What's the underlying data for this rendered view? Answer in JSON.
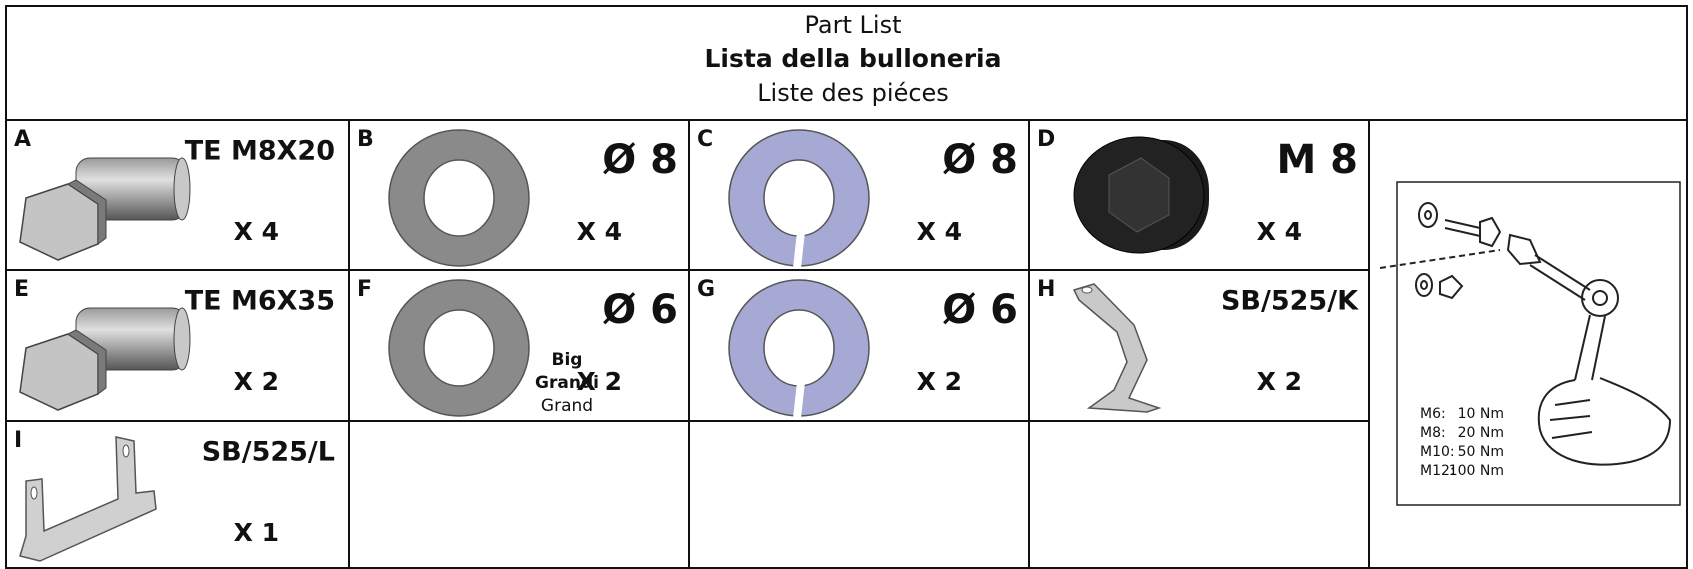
{
  "header": {
    "title": "Part List",
    "subtitle": "Lista della bulloneria",
    "subtitle2": "Liste des piéces"
  },
  "parts": [
    {
      "letter": "A",
      "code": "TE M8X20",
      "quantity": "X 4"
    },
    {
      "letter": "B",
      "code": "Ø 8",
      "quantity": "X 4"
    },
    {
      "letter": "C",
      "code": "Ø 8",
      "quantity": "X 4"
    },
    {
      "letter": "D",
      "code": "M 8",
      "quantity": "X 4"
    },
    {
      "letter": "E",
      "code": "TE M6X35",
      "quantity": "X 2"
    },
    {
      "letter": "F",
      "code": "Ø 6",
      "quantity": "X 2",
      "size_labels": [
        "Big",
        "Grandi",
        "Grand"
      ]
    },
    {
      "letter": "G",
      "code": "Ø 6",
      "quantity": "X 2"
    },
    {
      "letter": "H",
      "code": "SB/525/K",
      "quantity": "X 2"
    },
    {
      "letter": "I",
      "code": "SB/525/L",
      "quantity": "X 1"
    }
  ],
  "torque_table": [
    {
      "size": "M6:",
      "torque": "10 Nm"
    },
    {
      "size": "M8:",
      "torque": "20 Nm"
    },
    {
      "size": "M10:",
      "torque": "50 Nm"
    },
    {
      "size": "M12:",
      "torque": "100 Nm"
    }
  ]
}
